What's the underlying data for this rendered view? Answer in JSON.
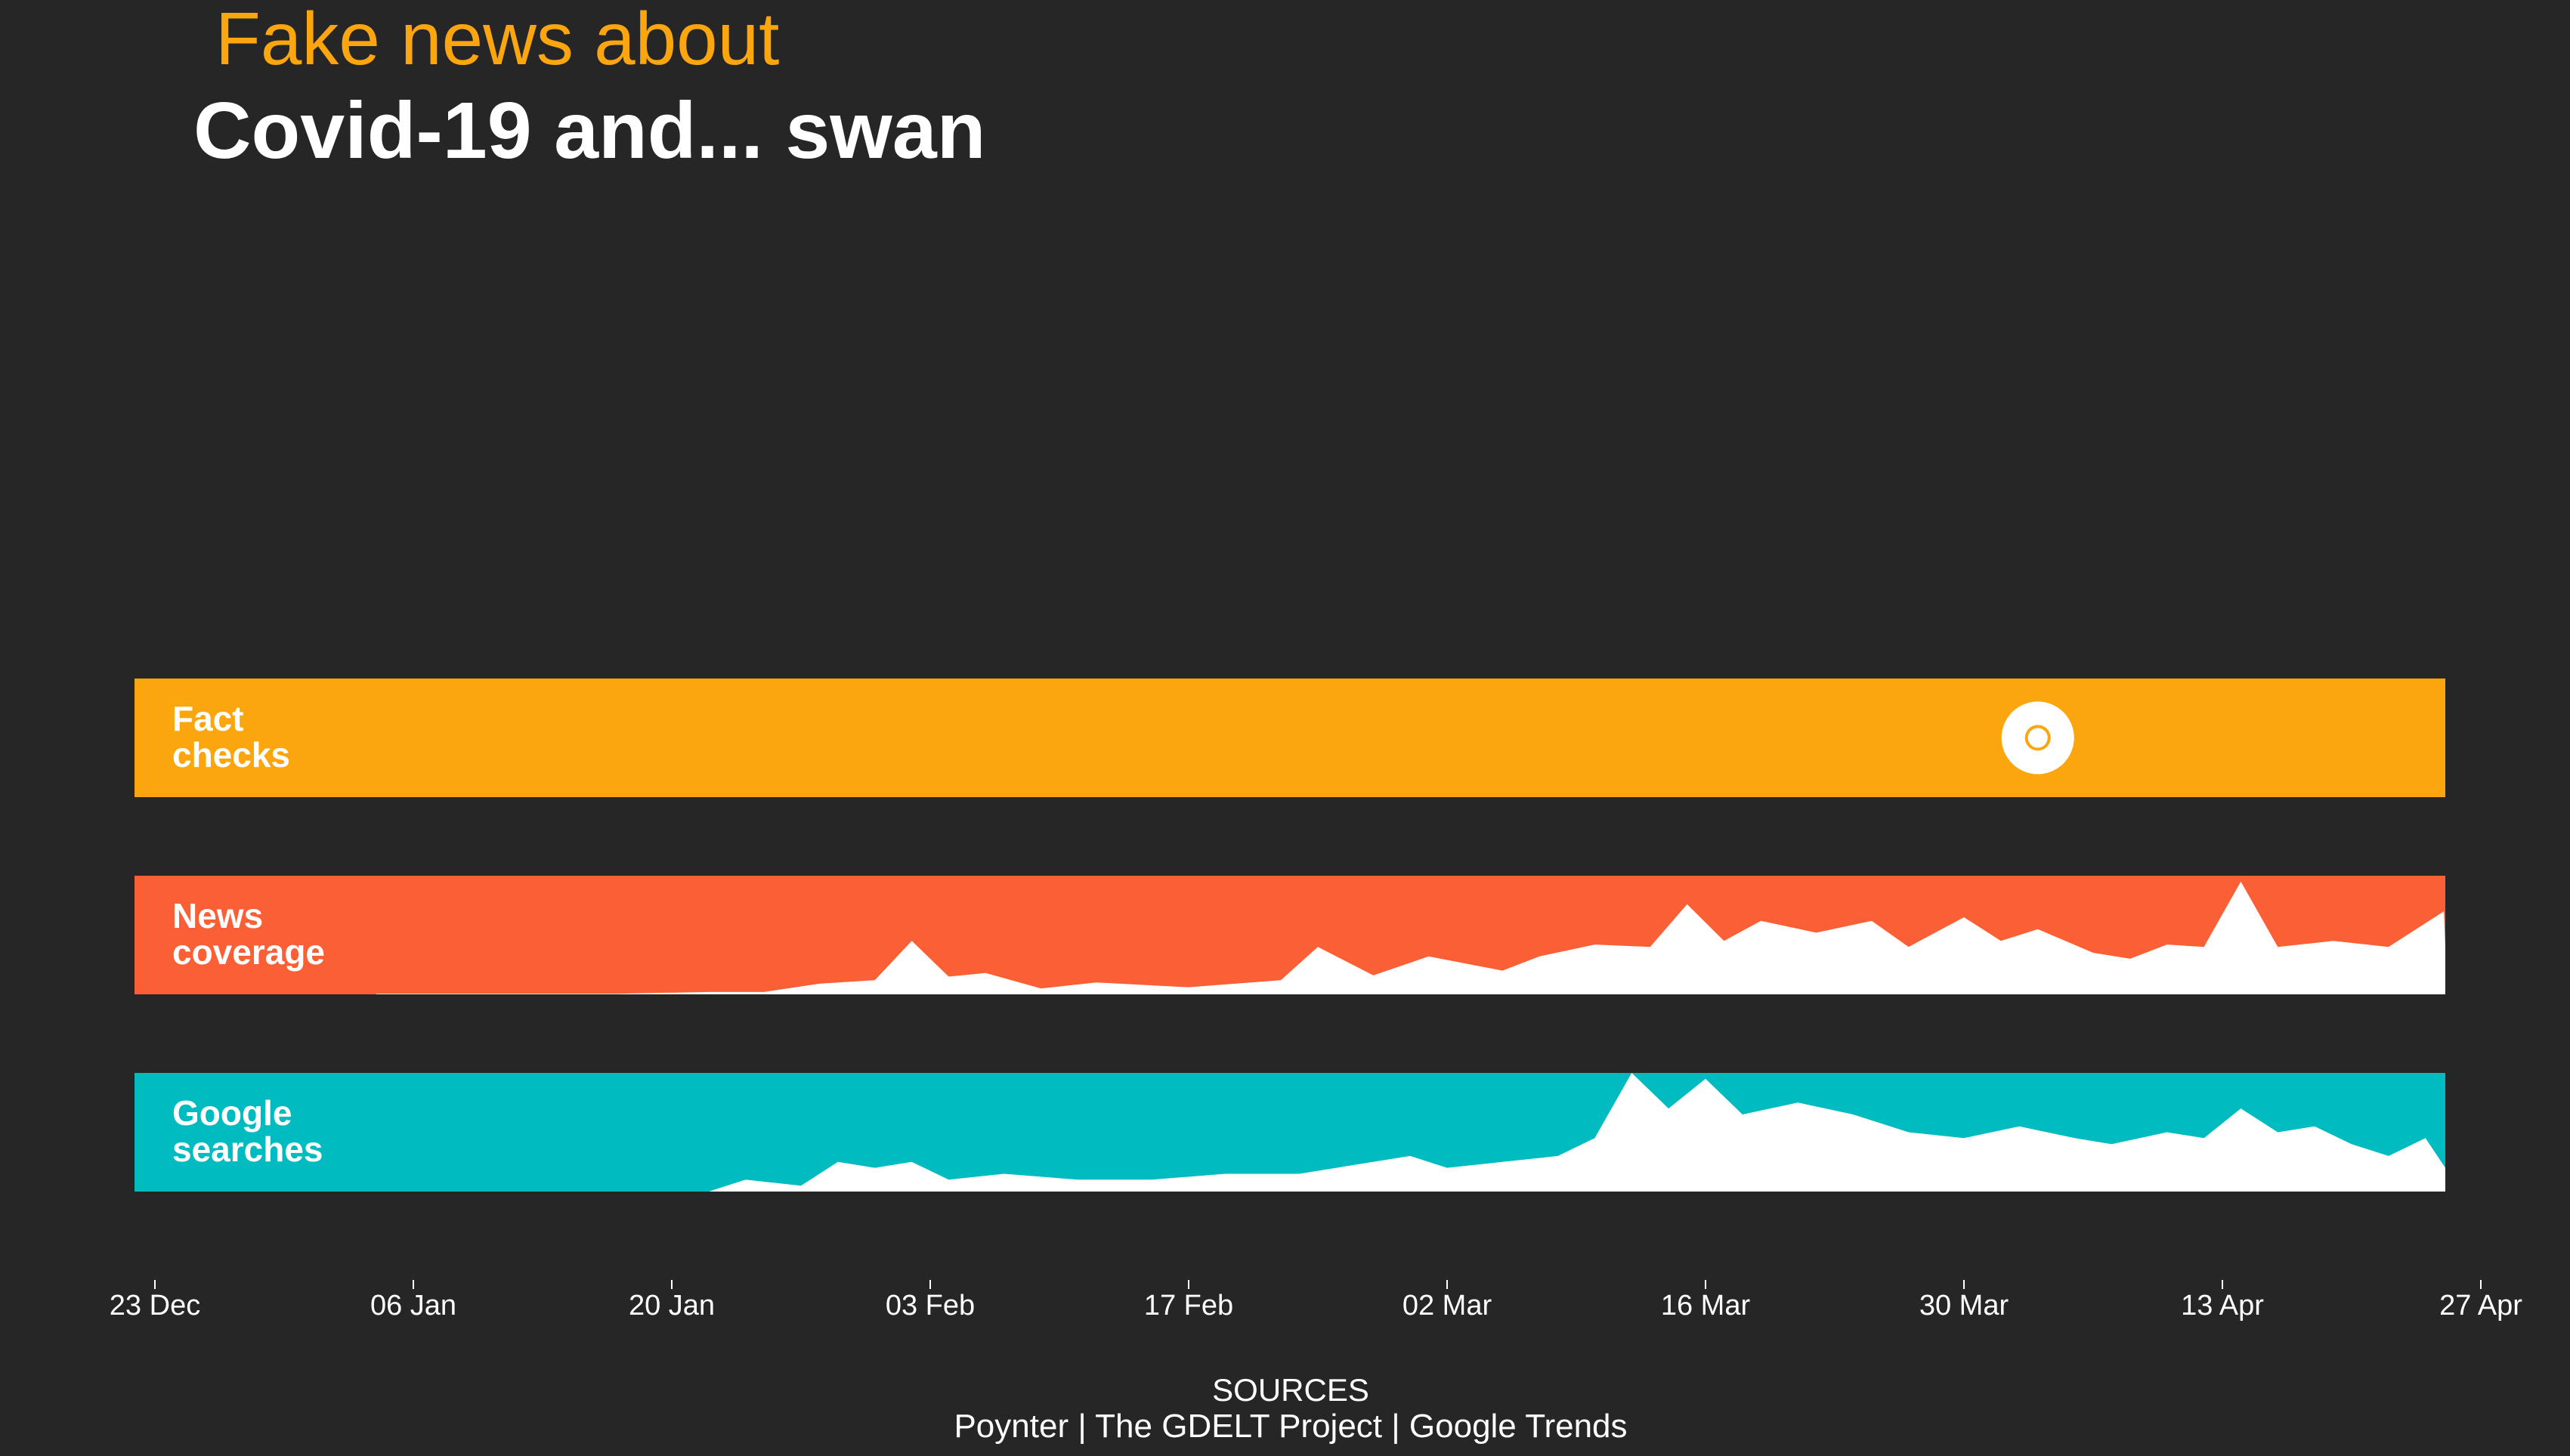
{
  "header": {
    "title_line1": "Fake news about",
    "title_line2": "Covid-19 and... swan"
  },
  "colors": {
    "background": "#262626",
    "fact_checks": "#fca60f",
    "news_coverage": "#fa5f35",
    "google_searches": "#00bbbf",
    "area_fill": "#ffffff"
  },
  "footer": {
    "sources_heading": "SOURCES",
    "sources_list": "Poynter | The GDELT Project | Google Trends"
  },
  "chart_data": {
    "type": "area",
    "x_start": "2019-12-23",
    "x_end": "2020-04-27",
    "tick_labels": [
      "23 Dec",
      "06 Jan",
      "20 Jan",
      "03 Feb",
      "17 Feb",
      "02 Mar",
      "16 Mar",
      "30 Mar",
      "13 Apr",
      "27 Apr"
    ],
    "y_range": [
      0,
      100
    ],
    "grid": false,
    "legend": "none",
    "series": [
      {
        "name": "Fact checks",
        "label_lines": [
          "Fact",
          "checks"
        ],
        "type": "events",
        "events": [
          {
            "date": "2020-04-03",
            "count": 1
          }
        ]
      },
      {
        "name": "News coverage",
        "label_lines": [
          "News",
          "coverage"
        ],
        "type": "area",
        "points": [
          [
            "2020-01-04",
            0.5
          ],
          [
            "2020-01-08",
            0.5
          ],
          [
            "2020-01-13",
            0.5
          ],
          [
            "2020-01-17",
            0.5
          ],
          [
            "2020-01-22",
            2
          ],
          [
            "2020-01-25",
            2
          ],
          [
            "2020-01-28",
            9
          ],
          [
            "2020-01-31",
            12
          ],
          [
            "2020-02-02",
            45
          ],
          [
            "2020-02-04",
            15
          ],
          [
            "2020-02-06",
            18
          ],
          [
            "2020-02-09",
            5
          ],
          [
            "2020-02-12",
            10
          ],
          [
            "2020-02-17",
            6
          ],
          [
            "2020-02-22",
            12
          ],
          [
            "2020-02-24",
            40
          ],
          [
            "2020-02-27",
            16
          ],
          [
            "2020-03-01",
            32
          ],
          [
            "2020-03-05",
            20
          ],
          [
            "2020-03-07",
            32
          ],
          [
            "2020-03-10",
            42
          ],
          [
            "2020-03-13",
            40
          ],
          [
            "2020-03-15",
            76
          ],
          [
            "2020-03-17",
            45
          ],
          [
            "2020-03-19",
            62
          ],
          [
            "2020-03-22",
            52
          ],
          [
            "2020-03-25",
            62
          ],
          [
            "2020-03-27",
            40
          ],
          [
            "2020-03-30",
            65
          ],
          [
            "2020-04-01",
            45
          ],
          [
            "2020-04-03",
            55
          ],
          [
            "2020-04-06",
            35
          ],
          [
            "2020-04-08",
            30
          ],
          [
            "2020-04-10",
            42
          ],
          [
            "2020-04-12",
            40
          ],
          [
            "2020-04-14",
            95
          ],
          [
            "2020-04-16",
            40
          ],
          [
            "2020-04-19",
            45
          ],
          [
            "2020-04-22",
            40
          ],
          [
            "2020-04-25",
            70
          ],
          [
            "2020-04-27",
            40
          ]
        ]
      },
      {
        "name": "Google searches",
        "label_lines": [
          "Google",
          "searches"
        ],
        "type": "area",
        "points": [
          [
            "2020-01-22",
            0
          ],
          [
            "2020-01-24",
            10
          ],
          [
            "2020-01-27",
            5
          ],
          [
            "2020-01-29",
            25
          ],
          [
            "2020-01-31",
            20
          ],
          [
            "2020-02-02",
            25
          ],
          [
            "2020-02-04",
            10
          ],
          [
            "2020-02-07",
            15
          ],
          [
            "2020-02-11",
            10
          ],
          [
            "2020-02-15",
            10
          ],
          [
            "2020-02-19",
            15
          ],
          [
            "2020-02-23",
            15
          ],
          [
            "2020-02-25",
            20
          ],
          [
            "2020-02-29",
            30
          ],
          [
            "2020-03-02",
            20
          ],
          [
            "2020-03-05",
            25
          ],
          [
            "2020-03-08",
            30
          ],
          [
            "2020-03-10",
            45
          ],
          [
            "2020-03-12",
            100
          ],
          [
            "2020-03-14",
            70
          ],
          [
            "2020-03-16",
            95
          ],
          [
            "2020-03-18",
            65
          ],
          [
            "2020-03-21",
            75
          ],
          [
            "2020-03-24",
            65
          ],
          [
            "2020-03-27",
            50
          ],
          [
            "2020-03-30",
            45
          ],
          [
            "2020-04-02",
            55
          ],
          [
            "2020-04-05",
            45
          ],
          [
            "2020-04-07",
            40
          ],
          [
            "2020-04-10",
            50
          ],
          [
            "2020-04-12",
            45
          ],
          [
            "2020-04-14",
            70
          ],
          [
            "2020-04-16",
            50
          ],
          [
            "2020-04-18",
            55
          ],
          [
            "2020-04-20",
            40
          ],
          [
            "2020-04-22",
            30
          ],
          [
            "2020-04-24",
            45
          ],
          [
            "2020-04-26",
            20
          ],
          [
            "2020-04-27",
            45
          ]
        ]
      }
    ]
  }
}
